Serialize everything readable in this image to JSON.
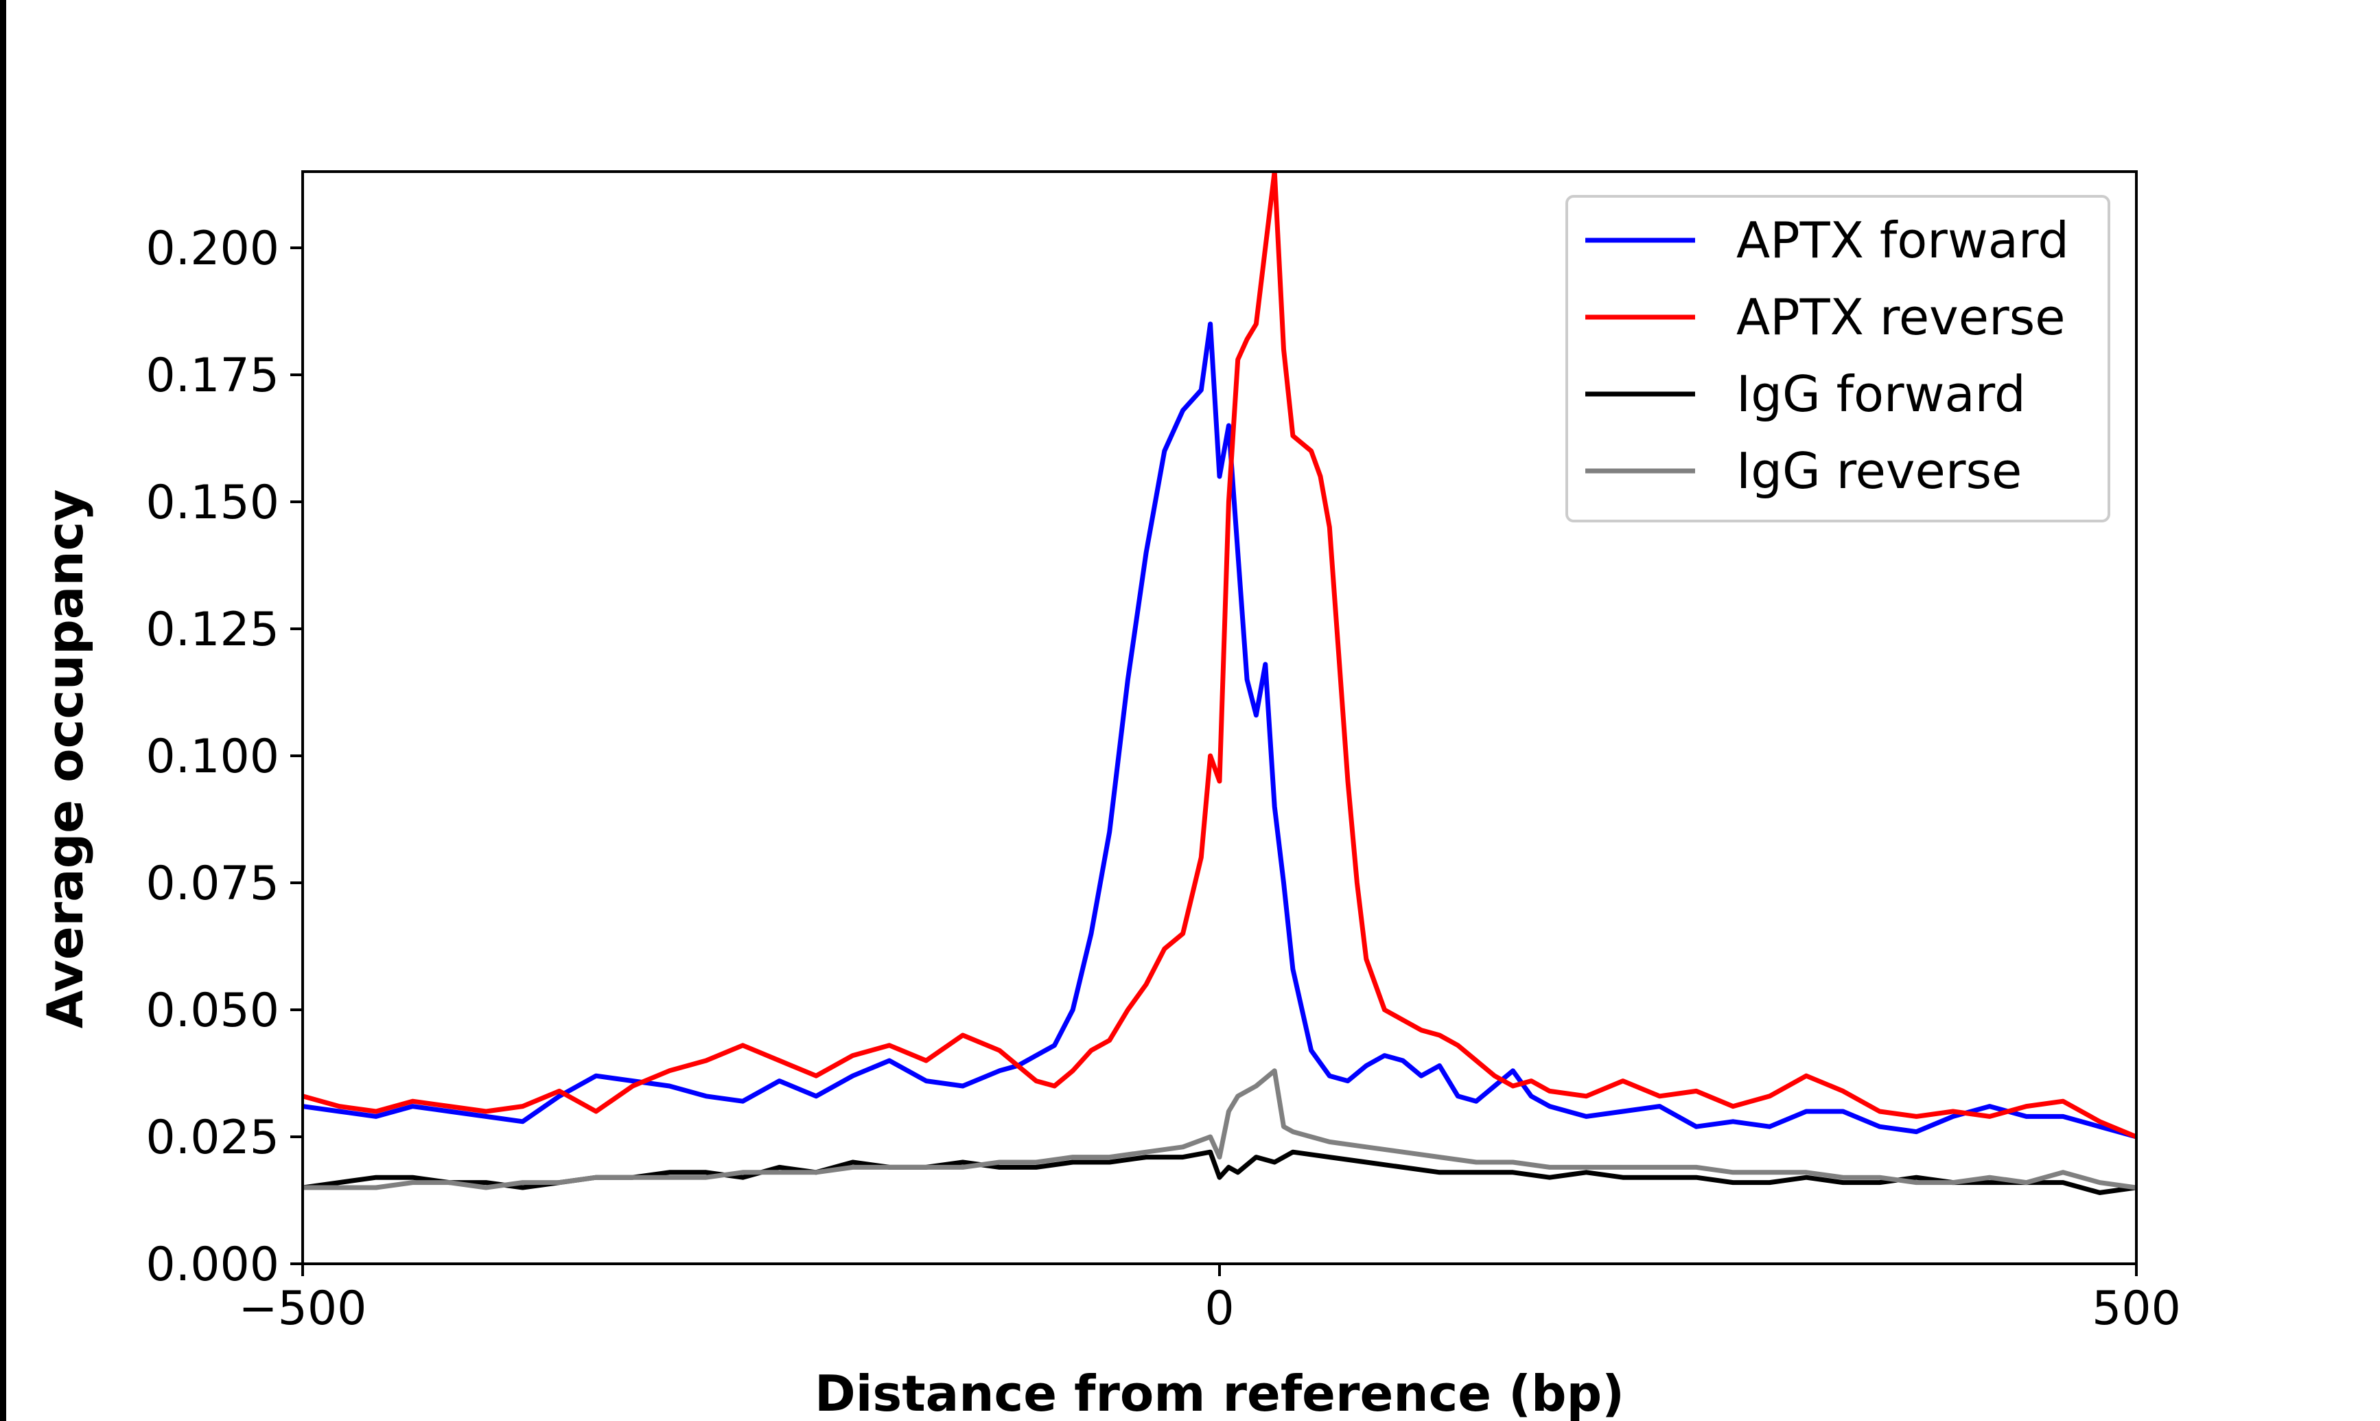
{
  "chart_data": {
    "type": "line",
    "title": "",
    "xlabel": "Distance from reference (bp)",
    "ylabel": "Average occupancy",
    "xlim": [
      -500,
      500
    ],
    "ylim": [
      0,
      0.215
    ],
    "x_ticks": [
      -500,
      0,
      500
    ],
    "x_tick_labels": [
      "−500",
      "0",
      "500"
    ],
    "y_ticks": [
      0,
      0.025,
      0.05,
      0.075,
      0.1,
      0.125,
      0.15,
      0.175,
      0.2
    ],
    "y_tick_labels": [
      "0.000",
      "0.025",
      "0.050",
      "0.075",
      "0.100",
      "0.125",
      "0.150",
      "0.175",
      "0.200"
    ],
    "grid": false,
    "legend_position": "top-right",
    "series": [
      {
        "name": "APTX forward",
        "color": "#0000ff",
        "points": [
          [
            -500,
            0.031
          ],
          [
            -480,
            0.03
          ],
          [
            -460,
            0.029
          ],
          [
            -440,
            0.031
          ],
          [
            -420,
            0.03
          ],
          [
            -400,
            0.029
          ],
          [
            -380,
            0.028
          ],
          [
            -360,
            0.033
          ],
          [
            -340,
            0.037
          ],
          [
            -320,
            0.036
          ],
          [
            -300,
            0.035
          ],
          [
            -280,
            0.033
          ],
          [
            -260,
            0.032
          ],
          [
            -240,
            0.036
          ],
          [
            -220,
            0.033
          ],
          [
            -200,
            0.037
          ],
          [
            -180,
            0.04
          ],
          [
            -160,
            0.036
          ],
          [
            -140,
            0.035
          ],
          [
            -120,
            0.038
          ],
          [
            -110,
            0.039
          ],
          [
            -100,
            0.041
          ],
          [
            -90,
            0.043
          ],
          [
            -80,
            0.05
          ],
          [
            -70,
            0.065
          ],
          [
            -60,
            0.085
          ],
          [
            -50,
            0.115
          ],
          [
            -40,
            0.14
          ],
          [
            -30,
            0.16
          ],
          [
            -20,
            0.168
          ],
          [
            -10,
            0.172
          ],
          [
            -5,
            0.185
          ],
          [
            0,
            0.155
          ],
          [
            5,
            0.165
          ],
          [
            10,
            0.14
          ],
          [
            15,
            0.115
          ],
          [
            20,
            0.108
          ],
          [
            25,
            0.118
          ],
          [
            30,
            0.09
          ],
          [
            35,
            0.075
          ],
          [
            40,
            0.058
          ],
          [
            50,
            0.042
          ],
          [
            60,
            0.037
          ],
          [
            70,
            0.036
          ],
          [
            80,
            0.039
          ],
          [
            90,
            0.041
          ],
          [
            100,
            0.04
          ],
          [
            110,
            0.037
          ],
          [
            120,
            0.039
          ],
          [
            130,
            0.033
          ],
          [
            140,
            0.032
          ],
          [
            150,
            0.035
          ],
          [
            160,
            0.038
          ],
          [
            170,
            0.033
          ],
          [
            180,
            0.031
          ],
          [
            200,
            0.029
          ],
          [
            220,
            0.03
          ],
          [
            240,
            0.031
          ],
          [
            260,
            0.027
          ],
          [
            280,
            0.028
          ],
          [
            300,
            0.027
          ],
          [
            320,
            0.03
          ],
          [
            340,
            0.03
          ],
          [
            360,
            0.027
          ],
          [
            380,
            0.026
          ],
          [
            400,
            0.029
          ],
          [
            420,
            0.031
          ],
          [
            440,
            0.029
          ],
          [
            460,
            0.029
          ],
          [
            480,
            0.027
          ],
          [
            500,
            0.025
          ]
        ]
      },
      {
        "name": "APTX reverse",
        "color": "#ff0000",
        "points": [
          [
            -500,
            0.033
          ],
          [
            -480,
            0.031
          ],
          [
            -460,
            0.03
          ],
          [
            -440,
            0.032
          ],
          [
            -420,
            0.031
          ],
          [
            -400,
            0.03
          ],
          [
            -380,
            0.031
          ],
          [
            -360,
            0.034
          ],
          [
            -340,
            0.03
          ],
          [
            -320,
            0.035
          ],
          [
            -300,
            0.038
          ],
          [
            -280,
            0.04
          ],
          [
            -260,
            0.043
          ],
          [
            -240,
            0.04
          ],
          [
            -220,
            0.037
          ],
          [
            -200,
            0.041
          ],
          [
            -180,
            0.043
          ],
          [
            -160,
            0.04
          ],
          [
            -140,
            0.045
          ],
          [
            -120,
            0.042
          ],
          [
            -110,
            0.039
          ],
          [
            -100,
            0.036
          ],
          [
            -90,
            0.035
          ],
          [
            -80,
            0.038
          ],
          [
            -70,
            0.042
          ],
          [
            -60,
            0.044
          ],
          [
            -50,
            0.05
          ],
          [
            -40,
            0.055
          ],
          [
            -30,
            0.062
          ],
          [
            -20,
            0.065
          ],
          [
            -10,
            0.08
          ],
          [
            -5,
            0.1
          ],
          [
            0,
            0.095
          ],
          [
            5,
            0.15
          ],
          [
            10,
            0.178
          ],
          [
            15,
            0.182
          ],
          [
            20,
            0.185
          ],
          [
            25,
            0.2
          ],
          [
            30,
            0.215
          ],
          [
            35,
            0.18
          ],
          [
            40,
            0.163
          ],
          [
            50,
            0.16
          ],
          [
            55,
            0.155
          ],
          [
            60,
            0.145
          ],
          [
            65,
            0.12
          ],
          [
            70,
            0.095
          ],
          [
            75,
            0.075
          ],
          [
            80,
            0.06
          ],
          [
            90,
            0.05
          ],
          [
            100,
            0.048
          ],
          [
            110,
            0.046
          ],
          [
            120,
            0.045
          ],
          [
            130,
            0.043
          ],
          [
            140,
            0.04
          ],
          [
            150,
            0.037
          ],
          [
            160,
            0.035
          ],
          [
            170,
            0.036
          ],
          [
            180,
            0.034
          ],
          [
            200,
            0.033
          ],
          [
            220,
            0.036
          ],
          [
            240,
            0.033
          ],
          [
            260,
            0.034
          ],
          [
            280,
            0.031
          ],
          [
            300,
            0.033
          ],
          [
            320,
            0.037
          ],
          [
            340,
            0.034
          ],
          [
            360,
            0.03
          ],
          [
            380,
            0.029
          ],
          [
            400,
            0.03
          ],
          [
            420,
            0.029
          ],
          [
            440,
            0.031
          ],
          [
            460,
            0.032
          ],
          [
            480,
            0.028
          ],
          [
            500,
            0.025
          ]
        ]
      },
      {
        "name": "IgG forward",
        "color": "#000000",
        "points": [
          [
            -500,
            0.015
          ],
          [
            -480,
            0.016
          ],
          [
            -460,
            0.017
          ],
          [
            -440,
            0.017
          ],
          [
            -420,
            0.016
          ],
          [
            -400,
            0.016
          ],
          [
            -380,
            0.015
          ],
          [
            -360,
            0.016
          ],
          [
            -340,
            0.017
          ],
          [
            -320,
            0.017
          ],
          [
            -300,
            0.018
          ],
          [
            -280,
            0.018
          ],
          [
            -260,
            0.017
          ],
          [
            -240,
            0.019
          ],
          [
            -220,
            0.018
          ],
          [
            -200,
            0.02
          ],
          [
            -180,
            0.019
          ],
          [
            -160,
            0.019
          ],
          [
            -140,
            0.02
          ],
          [
            -120,
            0.019
          ],
          [
            -100,
            0.019
          ],
          [
            -80,
            0.02
          ],
          [
            -60,
            0.02
          ],
          [
            -40,
            0.021
          ],
          [
            -20,
            0.021
          ],
          [
            -5,
            0.022
          ],
          [
            0,
            0.017
          ],
          [
            5,
            0.019
          ],
          [
            10,
            0.018
          ],
          [
            20,
            0.021
          ],
          [
            30,
            0.02
          ],
          [
            40,
            0.022
          ],
          [
            60,
            0.021
          ],
          [
            80,
            0.02
          ],
          [
            100,
            0.019
          ],
          [
            120,
            0.018
          ],
          [
            140,
            0.018
          ],
          [
            160,
            0.018
          ],
          [
            180,
            0.017
          ],
          [
            200,
            0.018
          ],
          [
            220,
            0.017
          ],
          [
            240,
            0.017
          ],
          [
            260,
            0.017
          ],
          [
            280,
            0.016
          ],
          [
            300,
            0.016
          ],
          [
            320,
            0.017
          ],
          [
            340,
            0.016
          ],
          [
            360,
            0.016
          ],
          [
            380,
            0.017
          ],
          [
            400,
            0.016
          ],
          [
            420,
            0.016
          ],
          [
            440,
            0.016
          ],
          [
            460,
            0.016
          ],
          [
            480,
            0.014
          ],
          [
            500,
            0.015
          ]
        ]
      },
      {
        "name": "IgG reverse",
        "color": "#808080",
        "points": [
          [
            -500,
            0.015
          ],
          [
            -480,
            0.015
          ],
          [
            -460,
            0.015
          ],
          [
            -440,
            0.016
          ],
          [
            -420,
            0.016
          ],
          [
            -400,
            0.015
          ],
          [
            -380,
            0.016
          ],
          [
            -360,
            0.016
          ],
          [
            -340,
            0.017
          ],
          [
            -320,
            0.017
          ],
          [
            -300,
            0.017
          ],
          [
            -280,
            0.017
          ],
          [
            -260,
            0.018
          ],
          [
            -240,
            0.018
          ],
          [
            -220,
            0.018
          ],
          [
            -200,
            0.019
          ],
          [
            -180,
            0.019
          ],
          [
            -160,
            0.019
          ],
          [
            -140,
            0.019
          ],
          [
            -120,
            0.02
          ],
          [
            -100,
            0.02
          ],
          [
            -80,
            0.021
          ],
          [
            -60,
            0.021
          ],
          [
            -40,
            0.022
          ],
          [
            -20,
            0.023
          ],
          [
            -5,
            0.025
          ],
          [
            0,
            0.021
          ],
          [
            5,
            0.03
          ],
          [
            10,
            0.033
          ],
          [
            20,
            0.035
          ],
          [
            30,
            0.038
          ],
          [
            35,
            0.027
          ],
          [
            40,
            0.026
          ],
          [
            60,
            0.024
          ],
          [
            80,
            0.023
          ],
          [
            100,
            0.022
          ],
          [
            120,
            0.021
          ],
          [
            140,
            0.02
          ],
          [
            160,
            0.02
          ],
          [
            180,
            0.019
          ],
          [
            200,
            0.019
          ],
          [
            220,
            0.019
          ],
          [
            240,
            0.019
          ],
          [
            260,
            0.019
          ],
          [
            280,
            0.018
          ],
          [
            300,
            0.018
          ],
          [
            320,
            0.018
          ],
          [
            340,
            0.017
          ],
          [
            360,
            0.017
          ],
          [
            380,
            0.016
          ],
          [
            400,
            0.016
          ],
          [
            420,
            0.017
          ],
          [
            440,
            0.016
          ],
          [
            460,
            0.018
          ],
          [
            480,
            0.016
          ],
          [
            500,
            0.015
          ]
        ]
      }
    ]
  }
}
